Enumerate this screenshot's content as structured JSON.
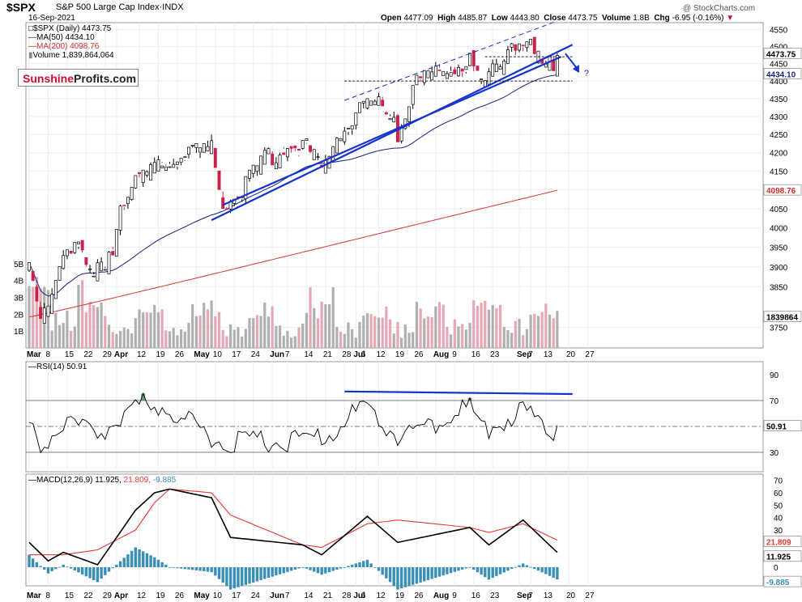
{
  "header": {
    "symbol": "$SPX",
    "description": "S&P 500 Large Cap Index·INDX",
    "date": "16-Sep-2021",
    "open_label": "Open",
    "open": "4477.09",
    "high_label": "High",
    "high": "4485.87",
    "low_label": "Low",
    "low": "4443.80",
    "close_label": "Close",
    "close": "4473.75",
    "volume_label": "Volume",
    "volume": "1.8B",
    "chg_label": "Chg",
    "chg": "-6.95 (-0.16%)",
    "copyright": "@ StockCharts.com"
  },
  "logo": {
    "part1": "Sunshine",
    "part2": "Profits.com"
  },
  "legend": {
    "price": "$SPX (Daily) 4473.75",
    "ma50": "MA(50) 4434.10",
    "ma200": "MA(200) 4098.76",
    "volume": "Volume 1,839,864,064",
    "rsi": "RSI(14) 50.91",
    "macd_prefix": "MACD(12,26,9)",
    "macd_val": "11.925,",
    "signal_val": "21.809,",
    "hist_val": "-9.885"
  },
  "axis": {
    "price_ticks": [
      "4550",
      "4500",
      "4450",
      "4400",
      "4350",
      "4300",
      "4250",
      "4200",
      "4150",
      "4100",
      "4050",
      "4000",
      "3950",
      "3900",
      "3850",
      "3750"
    ],
    "volume_ticks": [
      "5B",
      "4B",
      "3B",
      "2B",
      "1B"
    ],
    "rsi_ticks": [
      "90",
      "70",
      "50",
      "30"
    ],
    "macd_ticks": [
      "70",
      "60",
      "50",
      "40",
      "30",
      "20",
      "10",
      "0"
    ],
    "x_labels": [
      "Mar",
      "8",
      "15",
      "22",
      "29",
      "Apr",
      "12",
      "19",
      "26",
      "May",
      "10",
      "17",
      "24",
      "Jun",
      "7",
      "14",
      "21",
      "28",
      "Jul",
      "6",
      "12",
      "19",
      "26",
      "Aug",
      "9",
      "16",
      "23",
      "Sep",
      "7",
      "13",
      "20",
      "27"
    ],
    "flags": {
      "last_close": "4473.75",
      "ma50": "4434.10",
      "ma200": "4098.76",
      "volume": "1839864",
      "rsi": "50.91",
      "macd": "11.925",
      "signal": "21.809",
      "hist": "-9.885"
    },
    "question_mark": "?"
  },
  "colors": {
    "up": "#ffffff",
    "down": "#cc1f4a",
    "candle_outline": "#000000",
    "ma50": "#1a237e",
    "ma200": "#d32f2f",
    "vol_up": "#b0b0b0",
    "vol_down": "#e8a7b4",
    "trend": "#1433cc",
    "macd": "#000000",
    "signal": "#e53935",
    "hist": "#3a8fb7"
  },
  "chart_data": [
    {
      "type": "candlestick",
      "title": "$SPX S&P 500 Large Cap Index·INDX",
      "x_range": [
        "2021-03-01",
        "2021-09-16"
      ],
      "ylim": [
        3700,
        4570
      ],
      "y_scale": "log",
      "anchors": [
        {
          "date": "2021-03-01",
          "close": 3900
        },
        {
          "date": "2021-03-04",
          "close": 3770
        },
        {
          "date": "2021-03-11",
          "close": 3940
        },
        {
          "date": "2021-03-17",
          "close": 3975
        },
        {
          "date": "2021-03-24",
          "close": 3880
        },
        {
          "date": "2021-03-31",
          "close": 3970
        },
        {
          "date": "2021-04-05",
          "close": 4080
        },
        {
          "date": "2021-04-16",
          "close": 4185
        },
        {
          "date": "2021-04-29",
          "close": 4210
        },
        {
          "date": "2021-05-07",
          "close": 4235
        },
        {
          "date": "2021-05-12",
          "close": 4065
        },
        {
          "date": "2021-05-19",
          "close": 4115
        },
        {
          "date": "2021-05-28",
          "close": 4205
        },
        {
          "date": "2021-06-11",
          "close": 4245
        },
        {
          "date": "2021-06-18",
          "close": 4165
        },
        {
          "date": "2021-06-24",
          "close": 4265
        },
        {
          "date": "2021-07-07",
          "close": 4360
        },
        {
          "date": "2021-07-16",
          "close": 4330
        },
        {
          "date": "2021-07-19",
          "close": 4260
        },
        {
          "date": "2021-07-26",
          "close": 4420
        },
        {
          "date": "2021-08-13",
          "close": 4470
        },
        {
          "date": "2021-08-19",
          "close": 4405
        },
        {
          "date": "2021-08-30",
          "close": 4525
        },
        {
          "date": "2021-09-02",
          "close": 4537
        },
        {
          "date": "2021-09-10",
          "close": 4460
        },
        {
          "date": "2021-09-16",
          "close": 4473.75
        }
      ],
      "last": {
        "open": 4477.09,
        "high": 4485.87,
        "low": 4443.8,
        "close": 4473.75
      },
      "series": [
        {
          "name": "MA(50)",
          "last": 4434.1
        },
        {
          "name": "MA(200)",
          "last": 4098.76
        }
      ],
      "volume": {
        "ylim_billions": [
          0,
          6
        ],
        "typical_billions": 2.3,
        "last": 1839864064
      },
      "trendlines": [
        {
          "style": "solid",
          "from": {
            "date": "2021-05-07",
            "value": 4020
          },
          "to": {
            "date": "2021-09-22",
            "value": 4505
          }
        },
        {
          "style": "solid",
          "from": {
            "date": "2021-05-12",
            "value": 4060
          },
          "to": {
            "date": "2021-09-17",
            "value": 4470
          }
        },
        {
          "style": "dashed",
          "from": {
            "date": "2021-06-28",
            "value": 4345
          },
          "to": {
            "date": "2021-09-16",
            "value": 4575
          }
        },
        {
          "style": "dashed",
          "from": {
            "date": "2021-08-19",
            "value": 4470
          },
          "to": {
            "date": "2021-09-22",
            "value": 4470
          }
        },
        {
          "style": "dashed",
          "from": {
            "date": "2021-06-28",
            "value": 4400
          },
          "to": {
            "date": "2021-09-22",
            "value": 4400
          }
        }
      ]
    },
    {
      "type": "line",
      "title": "RSI(14)",
      "ylim": [
        15,
        100
      ],
      "reference_lines": [
        70,
        50,
        30
      ],
      "last": 50.91,
      "anchors": [
        {
          "date": "2021-03-01",
          "value": 52
        },
        {
          "date": "2021-03-04",
          "value": 40
        },
        {
          "date": "2021-03-15",
          "value": 60
        },
        {
          "date": "2021-03-24",
          "value": 47
        },
        {
          "date": "2021-04-09",
          "value": 70
        },
        {
          "date": "2021-04-16",
          "value": 73
        },
        {
          "date": "2021-05-12",
          "value": 42
        },
        {
          "date": "2021-06-18",
          "value": 44
        },
        {
          "date": "2021-07-07",
          "value": 72
        },
        {
          "date": "2021-07-19",
          "value": 45
        },
        {
          "date": "2021-08-13",
          "value": 70
        },
        {
          "date": "2021-08-19",
          "value": 51
        },
        {
          "date": "2021-09-02",
          "value": 68
        },
        {
          "date": "2021-09-14",
          "value": 49
        },
        {
          "date": "2021-09-16",
          "value": 50.91
        }
      ],
      "trendline": {
        "from": {
          "date": "2021-06-28",
          "value": 77
        },
        "to": {
          "date": "2021-09-22",
          "value": 75
        }
      }
    },
    {
      "type": "line",
      "title": "MACD(12,26,9)",
      "ylim": [
        -15,
        75
      ],
      "series": [
        {
          "name": "MACD",
          "last": 11.925
        },
        {
          "name": "Signal",
          "last": 21.809
        },
        {
          "name": "Histogram",
          "last": -9.885
        }
      ],
      "anchors": [
        {
          "date": "2021-03-01",
          "macd": 20,
          "signal": 10
        },
        {
          "date": "2021-03-08",
          "macd": 5,
          "signal": 10
        },
        {
          "date": "2021-03-12",
          "macd": 12,
          "signal": 10
        },
        {
          "date": "2021-03-25",
          "macd": 2,
          "signal": 14
        },
        {
          "date": "2021-04-09",
          "macd": 46,
          "signal": 30
        },
        {
          "date": "2021-04-16",
          "macd": 60,
          "signal": 52
        },
        {
          "date": "2021-04-22",
          "macd": 63,
          "signal": 63
        },
        {
          "date": "2021-05-07",
          "macd": 56,
          "signal": 60
        },
        {
          "date": "2021-05-14",
          "macd": 24,
          "signal": 42
        },
        {
          "date": "2021-06-11",
          "macd": 18,
          "signal": 18
        },
        {
          "date": "2021-06-18",
          "macd": 10,
          "signal": 16
        },
        {
          "date": "2021-07-07",
          "macd": 41,
          "signal": 35
        },
        {
          "date": "2021-07-19",
          "macd": 20,
          "signal": 38
        },
        {
          "date": "2021-08-13",
          "macd": 32,
          "signal": 32
        },
        {
          "date": "2021-08-20",
          "macd": 18,
          "signal": 28
        },
        {
          "date": "2021-09-02",
          "macd": 38,
          "signal": 35
        },
        {
          "date": "2021-09-16",
          "macd": 11.925,
          "signal": 21.809
        }
      ]
    }
  ]
}
